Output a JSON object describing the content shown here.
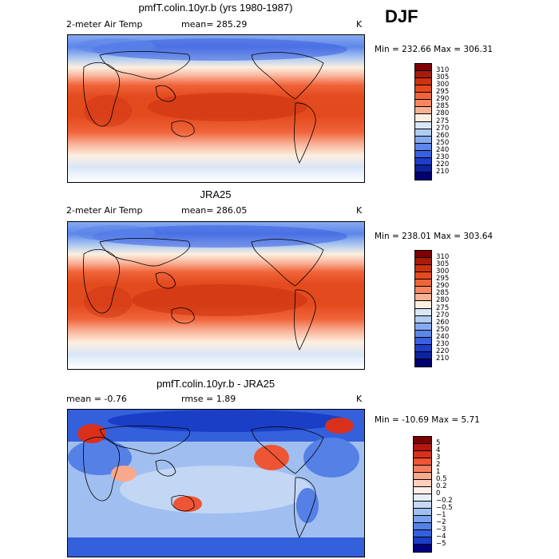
{
  "season": "DJF",
  "chart_data": [
    {
      "type": "heatmap",
      "title": "pmfT.colin.10yr.b (yrs 1980-1987)",
      "left_label": "2-meter Air Temp",
      "center_label": "mean= 285.29",
      "unit": "K",
      "minmax": "Min = 232.66 Max = 306.31",
      "colorbar_levels": [
        "310",
        "305",
        "300",
        "295",
        "290",
        "285",
        "280",
        "275",
        "270",
        "260",
        "250",
        "240",
        "230",
        "220",
        "210"
      ],
      "colorbar_colors": [
        "#7f0000",
        "#a91a0a",
        "#cc3311",
        "#e34a1e",
        "#f0643a",
        "#f58660",
        "#f9b196",
        "#fdefe0",
        "#d9e6f7",
        "#b2ccf0",
        "#86aaf0",
        "#5d86ea",
        "#3a5fe0",
        "#1d3dc8",
        "#0d22a0",
        "#000070"
      ],
      "mean": 285.29,
      "min": 232.66,
      "max": 306.31
    },
    {
      "type": "heatmap",
      "title": "JRA25",
      "left_label": "2-meter Air Temp",
      "center_label": "mean= 286.05",
      "unit": "K",
      "minmax": "Min = 238.01 Max = 303.64",
      "colorbar_levels": [
        "310",
        "305",
        "300",
        "295",
        "290",
        "285",
        "280",
        "275",
        "270",
        "260",
        "250",
        "240",
        "230",
        "220",
        "210"
      ],
      "colorbar_colors": [
        "#7f0000",
        "#a91a0a",
        "#cc3311",
        "#e34a1e",
        "#f0643a",
        "#f58660",
        "#f9b196",
        "#fdefe0",
        "#d9e6f7",
        "#b2ccf0",
        "#86aaf0",
        "#5d86ea",
        "#3a5fe0",
        "#1d3dc8",
        "#0d22a0",
        "#000070"
      ],
      "mean": 286.05,
      "min": 238.01,
      "max": 303.64
    },
    {
      "type": "heatmap",
      "title": "pmfT.colin.10yr.b - JRA25",
      "left_label": "mean =   -0.76",
      "center_label": "rmse =    1.89",
      "unit": "K",
      "minmax": "Min = -10.69 Max =   5.71",
      "colorbar_levels": [
        "5",
        "4",
        "3",
        "2",
        "1",
        "0.5",
        "0.2",
        "0",
        "−0.2",
        "−0.5",
        "−1",
        "−2",
        "−3",
        "−4",
        "−5"
      ],
      "colorbar_colors": [
        "#7f0000",
        "#b3170e",
        "#d9301c",
        "#ed5535",
        "#f57e5e",
        "#f9a88c",
        "#fcd0bc",
        "#fdeee6",
        "#e6eefa",
        "#c6d8f4",
        "#a0bff0",
        "#7aa2ec",
        "#5580e6",
        "#3560dc",
        "#1a3ec6",
        "#000080"
      ],
      "mean": -0.76,
      "rmse": 1.89,
      "min": -10.69,
      "max": 5.71
    }
  ]
}
